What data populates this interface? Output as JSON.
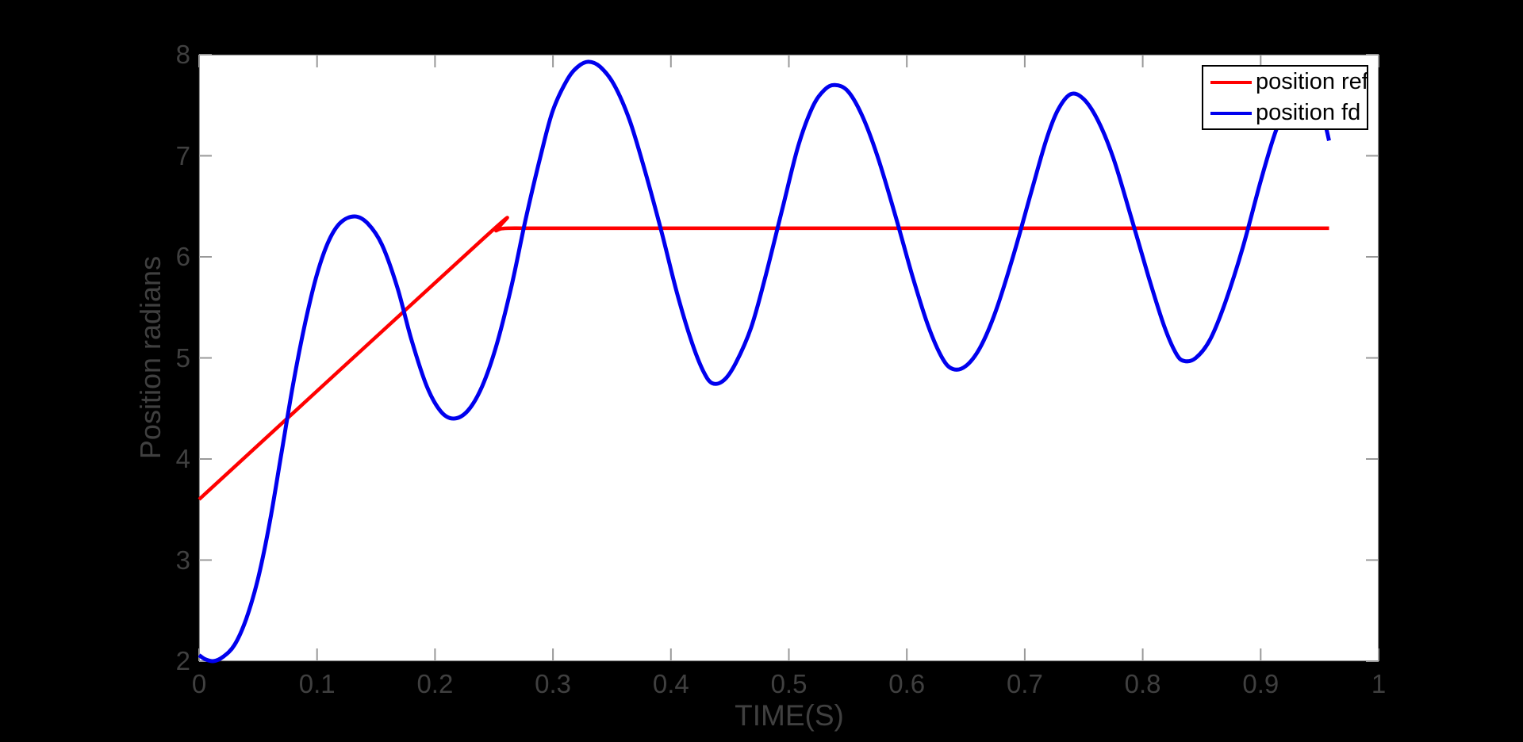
{
  "figure": {
    "background_color": "#000000",
    "plot_background_color": "#ffffff",
    "tick_color": "#999999",
    "axis_text_color": "#404040"
  },
  "chart_data": {
    "type": "line",
    "title": "",
    "xlabel": "TIME(S)",
    "ylabel": "Position radians",
    "xlim": [
      0,
      1
    ],
    "ylim": [
      2,
      8
    ],
    "xticks": [
      0,
      0.1,
      0.2,
      0.3,
      0.4,
      0.5,
      0.6,
      0.7,
      0.8,
      0.9,
      1
    ],
    "xtick_labels": [
      "0",
      "0.1",
      "0.2",
      "0.3",
      "0.4",
      "0.5",
      "0.6",
      "0.7",
      "0.8",
      "0.9",
      "1"
    ],
    "yticks": [
      2,
      3,
      4,
      5,
      6,
      7,
      8
    ],
    "ytick_labels": [
      "2",
      "3",
      "4",
      "5",
      "6",
      "7",
      "8"
    ],
    "grid": false,
    "legend_position": "top-right",
    "series": [
      {
        "name": "position ref",
        "color": "#ff0000",
        "line_width": 4.5,
        "points": [
          [
            0,
            3.6
          ],
          [
            0.24,
            6.17
          ],
          [
            0.252,
            6.26
          ],
          [
            0.262,
            6.283
          ],
          [
            0.3,
            6.283
          ],
          [
            0.5,
            6.283
          ],
          [
            0.7,
            6.283
          ],
          [
            0.9,
            6.283
          ],
          [
            0.958,
            6.283
          ]
        ]
      },
      {
        "name": "position fd",
        "color": "#0000ee",
        "line_width": 5,
        "points": [
          [
            0,
            2.06
          ],
          [
            0.005,
            2.02
          ],
          [
            0.012,
            2.0
          ],
          [
            0.02,
            2.04
          ],
          [
            0.03,
            2.16
          ],
          [
            0.04,
            2.42
          ],
          [
            0.05,
            2.82
          ],
          [
            0.06,
            3.38
          ],
          [
            0.07,
            4.07
          ],
          [
            0.08,
            4.76
          ],
          [
            0.09,
            5.35
          ],
          [
            0.1,
            5.83
          ],
          [
            0.11,
            6.16
          ],
          [
            0.12,
            6.34
          ],
          [
            0.132,
            6.4
          ],
          [
            0.143,
            6.33
          ],
          [
            0.155,
            6.12
          ],
          [
            0.168,
            5.7
          ],
          [
            0.18,
            5.18
          ],
          [
            0.193,
            4.72
          ],
          [
            0.205,
            4.47
          ],
          [
            0.216,
            4.4
          ],
          [
            0.228,
            4.48
          ],
          [
            0.24,
            4.72
          ],
          [
            0.252,
            5.12
          ],
          [
            0.265,
            5.72
          ],
          [
            0.277,
            6.38
          ],
          [
            0.29,
            7.02
          ],
          [
            0.3,
            7.45
          ],
          [
            0.312,
            7.75
          ],
          [
            0.321,
            7.88
          ],
          [
            0.33,
            7.93
          ],
          [
            0.34,
            7.88
          ],
          [
            0.352,
            7.7
          ],
          [
            0.365,
            7.35
          ],
          [
            0.378,
            6.85
          ],
          [
            0.392,
            6.25
          ],
          [
            0.405,
            5.65
          ],
          [
            0.417,
            5.18
          ],
          [
            0.427,
            4.88
          ],
          [
            0.435,
            4.75
          ],
          [
            0.445,
            4.78
          ],
          [
            0.455,
            4.95
          ],
          [
            0.468,
            5.3
          ],
          [
            0.48,
            5.8
          ],
          [
            0.495,
            6.5
          ],
          [
            0.508,
            7.1
          ],
          [
            0.52,
            7.48
          ],
          [
            0.53,
            7.65
          ],
          [
            0.539,
            7.7
          ],
          [
            0.55,
            7.64
          ],
          [
            0.562,
            7.4
          ],
          [
            0.575,
            7.0
          ],
          [
            0.59,
            6.42
          ],
          [
            0.605,
            5.8
          ],
          [
            0.618,
            5.32
          ],
          [
            0.63,
            5.0
          ],
          [
            0.639,
            4.89
          ],
          [
            0.65,
            4.92
          ],
          [
            0.662,
            5.1
          ],
          [
            0.675,
            5.45
          ],
          [
            0.69,
            6.0
          ],
          [
            0.705,
            6.62
          ],
          [
            0.718,
            7.15
          ],
          [
            0.728,
            7.45
          ],
          [
            0.739,
            7.61
          ],
          [
            0.75,
            7.56
          ],
          [
            0.762,
            7.35
          ],
          [
            0.775,
            6.98
          ],
          [
            0.79,
            6.4
          ],
          [
            0.805,
            5.8
          ],
          [
            0.818,
            5.32
          ],
          [
            0.828,
            5.05
          ],
          [
            0.835,
            4.97
          ],
          [
            0.845,
            5.0
          ],
          [
            0.857,
            5.18
          ],
          [
            0.87,
            5.55
          ],
          [
            0.885,
            6.1
          ],
          [
            0.9,
            6.75
          ],
          [
            0.913,
            7.25
          ],
          [
            0.925,
            7.55
          ],
          [
            0.935,
            7.65
          ],
          [
            0.945,
            7.58
          ],
          [
            0.953,
            7.38
          ],
          [
            0.958,
            7.15
          ]
        ]
      }
    ]
  },
  "legend": {
    "entries": [
      {
        "label": "position ref",
        "color": "#ff0000"
      },
      {
        "label": "position fd",
        "color": "#0000ee"
      }
    ]
  }
}
